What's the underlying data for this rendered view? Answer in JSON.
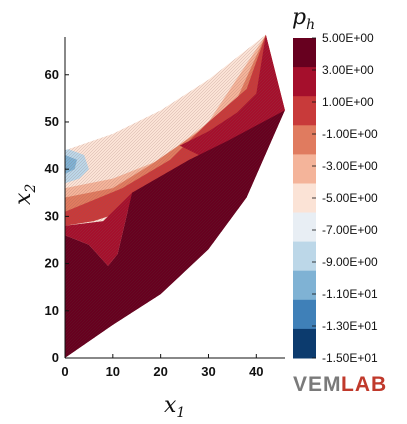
{
  "chart_data": {
    "type": "heatmap",
    "title": "",
    "xlabel": "x",
    "xlabel_sub": "1",
    "ylabel": "x",
    "ylabel_sub": "2",
    "xlim": [
      0,
      46
    ],
    "ylim": [
      0,
      68
    ],
    "x_ticks": [
      "0",
      "10",
      "20",
      "30",
      "40"
    ],
    "y_ticks": [
      "0",
      "10",
      "20",
      "30",
      "40",
      "50",
      "60"
    ],
    "colorbar": {
      "title": "p",
      "title_sub": "h",
      "levels": [
        "5.00E+00",
        "3.00E+00",
        "1.00E+00",
        "-1.00E+00",
        "-3.00E+00",
        "-5.00E+00",
        "-7.00E+00",
        "-9.00E+00",
        "-1.10E+01",
        "-1.30E+01",
        "-1.50E+01"
      ],
      "colors": [
        "#67001f",
        "#a50f2c",
        "#c83a3a",
        "#e07b5f",
        "#f4b49a",
        "#fbe3d6",
        "#e8eef4",
        "#bcd7e8",
        "#7fb2d4",
        "#3f80b8",
        "#0c3b6e"
      ]
    },
    "regions": [
      {
        "label": "upper region",
        "color": "#fbe3d6"
      },
      {
        "label": "lower region",
        "color": "#67001f"
      },
      {
        "label": "left edge band",
        "color": "#bcd7e8"
      }
    ]
  },
  "logo": {
    "part1": "VEM",
    "part2": "LAB"
  }
}
